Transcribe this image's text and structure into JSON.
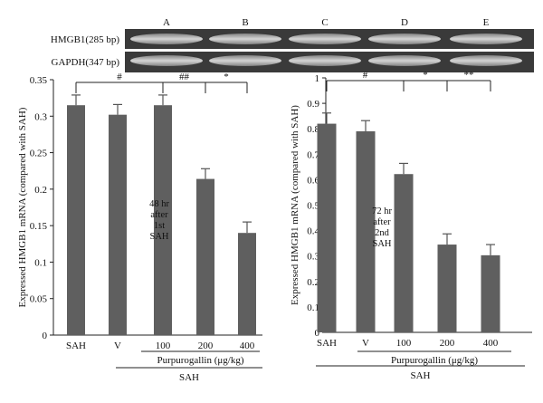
{
  "gel": {
    "lane_labels": [
      "A",
      "B",
      "C",
      "D",
      "E"
    ],
    "rows": [
      {
        "label": "HMGB1(285 bp)"
      },
      {
        "label": "GAPDH(347 bp)"
      }
    ]
  },
  "chart_data": [
    {
      "type": "bar",
      "categories": [
        "SAH",
        "V",
        "100",
        "200",
        "400"
      ],
      "values": [
        0.315,
        0.302,
        0.315,
        0.214,
        0.14
      ],
      "errors": [
        0.014,
        0.014,
        0.014,
        0.014,
        0.015
      ],
      "ylabel": "Expressed HMGB1 mRNA (compared with SAH)",
      "ylim": [
        0,
        0.35
      ],
      "yticks": [
        "0",
        "0.05",
        "0.1",
        "0.15",
        "0.2",
        "0.25",
        "0.3",
        "0.35"
      ],
      "annotation": [
        "48 hr",
        "after",
        "1st",
        "SAH"
      ],
      "group_label_inner": "Purpurogallin (μg/kg)",
      "group_label_outer": "SAH",
      "significance": [
        {
          "from": 0,
          "to": 2,
          "label": "#"
        },
        {
          "from": 2,
          "to": 3,
          "label": "##"
        },
        {
          "from": 3,
          "to": 4,
          "label": "*"
        }
      ]
    },
    {
      "type": "bar",
      "categories": [
        "SAH",
        "V",
        "100",
        "200",
        "400"
      ],
      "values": [
        0.82,
        0.79,
        0.622,
        0.345,
        0.303
      ],
      "errors": [
        0.042,
        0.042,
        0.042,
        0.042,
        0.042
      ],
      "ylabel": "Expressed HMGB1 mRNA (compared with SAH)",
      "ylim": [
        0,
        1
      ],
      "yticks": [
        "0",
        "0.1",
        "0.2",
        "0.3",
        "0.4",
        "0.5",
        "0.6",
        "0.7",
        "0.8",
        "0.9",
        "1"
      ],
      "annotation": [
        "72 hr",
        "after",
        "2nd",
        "SAH"
      ],
      "group_label_inner": "Purpurogallin (μg/kg)",
      "group_label_outer": "SAH",
      "significance": [
        {
          "from": 0,
          "to": 2,
          "label": "#"
        },
        {
          "from": 2,
          "to": 3,
          "label": "*"
        },
        {
          "from": 3,
          "to": 4,
          "label": "**"
        }
      ]
    }
  ]
}
